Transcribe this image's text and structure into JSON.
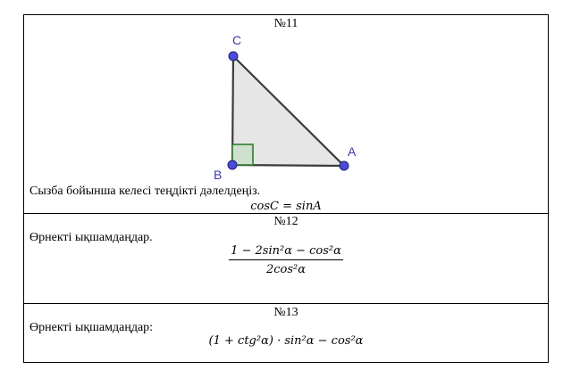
{
  "problems": [
    {
      "number": "№11",
      "instruction": "Сызба бойынша келесі теңдікті дәлелдеңіз.",
      "formula": "cosC = sinA",
      "figure": {
        "labels": {
          "A": "A",
          "B": "B",
          "C": "C"
        }
      }
    },
    {
      "number": "№12",
      "instruction": "Өрнекті ықшамдаңдар.",
      "numerator": "1 − 2sin²α − cos²α",
      "denominator": "2cos²α"
    },
    {
      "number": "№13",
      "instruction": "Өрнекті ықшамдаңдар:",
      "formula": "(1 + ctg²α) · sin²α − cos²α"
    }
  ],
  "colors": {
    "triangle_fill": "#e6e6e6",
    "triangle_stroke": "#3c3c3c",
    "point_fill": "#4b4bd8",
    "right_angle_stroke": "#2d7d2d",
    "label_color": "#3a3aa8"
  }
}
